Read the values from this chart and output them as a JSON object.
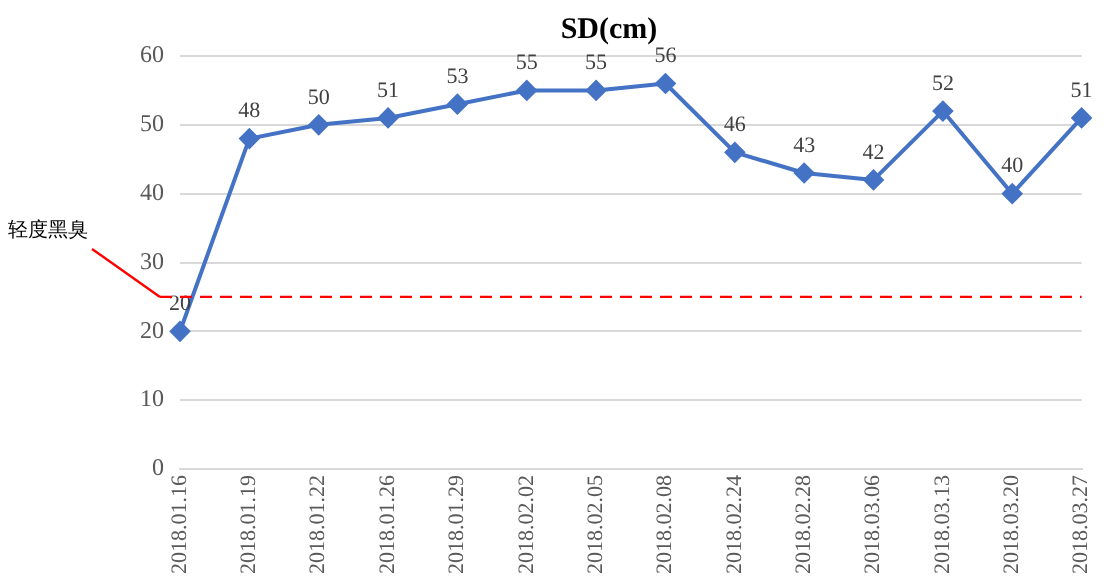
{
  "chart_data": {
    "type": "line",
    "title": "SD(cm)",
    "categories": [
      "2018.01.16",
      "2018.01.19",
      "2018.01.22",
      "2018.01.26",
      "2018.01.29",
      "2018.02.02",
      "2018.02.05",
      "2018.02.08",
      "2018.02.24",
      "2018.02.28",
      "2018.03.06",
      "2018.03.13",
      "2018.03.20",
      "2018.03.27"
    ],
    "series": [
      {
        "color": "#4472c4",
        "values": [
          20,
          48,
          50,
          51,
          53,
          55,
          55,
          56,
          46,
          43,
          42,
          52,
          40,
          51
        ]
      }
    ],
    "ylim": [
      0,
      60
    ],
    "yticks": [
      0,
      10,
      20,
      30,
      40,
      50,
      60
    ],
    "grid": "y",
    "legend": false,
    "marker": "diamond",
    "line_style": "solid",
    "data_labels": true,
    "ref_lines": [
      {
        "axis": "y",
        "value": 25,
        "label": "轻度黑臭",
        "color": "#ff0000",
        "line_style": "dashed"
      }
    ]
  }
}
